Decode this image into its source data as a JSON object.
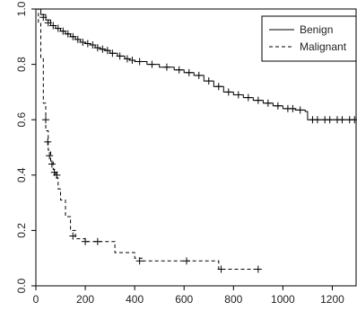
{
  "chart_data": {
    "type": "line",
    "title": "",
    "xlabel": "",
    "ylabel": "",
    "xlim": [
      0,
      1300
    ],
    "ylim": [
      0,
      1
    ],
    "x_ticks": [
      0,
      200,
      400,
      600,
      800,
      1000,
      1200
    ],
    "y_ticks": [
      0.0,
      0.2,
      0.4,
      0.6,
      0.8,
      1.0
    ],
    "y_tick_labels": [
      "0.0",
      "0.2",
      "0.4",
      "0.6",
      "0.8",
      "1.0"
    ],
    "grid": false,
    "legend_position": "top-right",
    "series": [
      {
        "name": "Benign",
        "line_style": "solid",
        "x": [
          0,
          20,
          40,
          60,
          80,
          100,
          120,
          140,
          160,
          180,
          200,
          220,
          240,
          260,
          280,
          300,
          330,
          360,
          380,
          400,
          450,
          500,
          560,
          600,
          640,
          680,
          720,
          760,
          800,
          840,
          880,
          920,
          960,
          1000,
          1050,
          1090,
          1100,
          1150,
          1200,
          1250,
          1290
        ],
        "y": [
          1.0,
          0.98,
          0.96,
          0.94,
          0.93,
          0.92,
          0.91,
          0.9,
          0.89,
          0.88,
          0.875,
          0.87,
          0.86,
          0.855,
          0.85,
          0.84,
          0.83,
          0.82,
          0.815,
          0.81,
          0.8,
          0.79,
          0.78,
          0.77,
          0.76,
          0.74,
          0.72,
          0.7,
          0.69,
          0.68,
          0.67,
          0.66,
          0.65,
          0.64,
          0.635,
          0.63,
          0.6,
          0.6,
          0.6,
          0.6,
          0.6
        ]
      },
      {
        "name": "Malignant",
        "line_style": "dashed",
        "x": [
          0,
          10,
          20,
          30,
          40,
          50,
          60,
          70,
          80,
          90,
          100,
          120,
          140,
          160,
          200,
          260,
          320,
          400,
          430,
          500,
          600,
          620,
          700,
          740,
          800,
          850,
          900
        ],
        "y": [
          1.0,
          0.95,
          0.82,
          0.66,
          0.56,
          0.49,
          0.45,
          0.42,
          0.39,
          0.35,
          0.31,
          0.25,
          0.2,
          0.17,
          0.16,
          0.16,
          0.12,
          0.1,
          0.09,
          0.09,
          0.09,
          0.09,
          0.09,
          0.06,
          0.06,
          0.06,
          0.06
        ]
      }
    ],
    "censor_marks": {
      "Benign": [
        [
          30,
          0.97
        ],
        [
          50,
          0.95
        ],
        [
          70,
          0.94
        ],
        [
          90,
          0.93
        ],
        [
          110,
          0.92
        ],
        [
          130,
          0.91
        ],
        [
          150,
          0.9
        ],
        [
          170,
          0.89
        ],
        [
          190,
          0.88
        ],
        [
          210,
          0.875
        ],
        [
          230,
          0.87
        ],
        [
          250,
          0.86
        ],
        [
          270,
          0.855
        ],
        [
          290,
          0.85
        ],
        [
          310,
          0.84
        ],
        [
          340,
          0.83
        ],
        [
          370,
          0.82
        ],
        [
          390,
          0.815
        ],
        [
          420,
          0.81
        ],
        [
          470,
          0.8
        ],
        [
          530,
          0.79
        ],
        [
          580,
          0.78
        ],
        [
          620,
          0.77
        ],
        [
          660,
          0.76
        ],
        [
          700,
          0.74
        ],
        [
          740,
          0.72
        ],
        [
          780,
          0.7
        ],
        [
          820,
          0.69
        ],
        [
          860,
          0.68
        ],
        [
          900,
          0.67
        ],
        [
          940,
          0.66
        ],
        [
          980,
          0.65
        ],
        [
          1020,
          0.64
        ],
        [
          1040,
          0.64
        ],
        [
          1070,
          0.635
        ],
        [
          1120,
          0.6
        ],
        [
          1140,
          0.6
        ],
        [
          1170,
          0.6
        ],
        [
          1190,
          0.6
        ],
        [
          1220,
          0.6
        ],
        [
          1240,
          0.6
        ],
        [
          1270,
          0.6
        ],
        [
          1290,
          0.6
        ]
      ],
      "Malignant": [
        [
          40,
          0.6
        ],
        [
          48,
          0.52
        ],
        [
          55,
          0.47
        ],
        [
          65,
          0.44
        ],
        [
          75,
          0.41
        ],
        [
          85,
          0.4
        ],
        [
          150,
          0.18
        ],
        [
          200,
          0.16
        ],
        [
          250,
          0.16
        ],
        [
          420,
          0.09
        ],
        [
          610,
          0.09
        ],
        [
          750,
          0.06
        ],
        [
          900,
          0.06
        ]
      ]
    }
  }
}
